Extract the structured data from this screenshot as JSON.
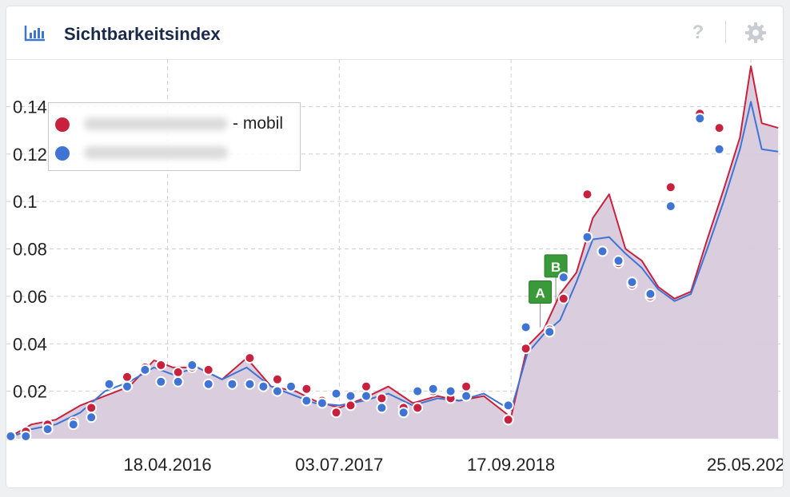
{
  "widget": {
    "title": "Sichtbarkeitsindex",
    "help_label": "?"
  },
  "colors": {
    "mobile": "#c8213e",
    "desktop": "#3f74d4",
    "area_fill": "#d8cadb",
    "grid": "#cfcfcf"
  },
  "chart_data": {
    "type": "line",
    "title": "Sichtbarkeitsindex",
    "ylim": [
      0,
      0.16
    ],
    "yticks": [
      0.02,
      0.04,
      0.06,
      0.08,
      0.1,
      0.12,
      0.14
    ],
    "ytick_labels": [
      "0.02",
      "0.04",
      "0.06",
      "0.08",
      "0.1",
      "0.12",
      "0.14"
    ],
    "xlim": [
      "2015-03-01",
      "2020-08-15"
    ],
    "xticks": [
      "2016-04-18",
      "2017-07-03",
      "2018-09-17",
      "2020-05-25"
    ],
    "xtick_labels": [
      "18.04.2016",
      "03.07.2017",
      "17.09.2018",
      "25.05.2020"
    ],
    "grid": true,
    "legend_position": "top-left",
    "legend": [
      {
        "series": "mobile",
        "label_suffix": "- mobil"
      },
      {
        "series": "desktop",
        "label_suffix": ""
      }
    ],
    "series": [
      {
        "key": "mobile",
        "x": [
          "2015-03-02",
          "2015-05-04",
          "2015-07-06",
          "2015-09-07",
          "2015-11-09",
          "2016-01-11",
          "2016-03-14",
          "2016-05-02",
          "2016-07-04",
          "2016-09-05",
          "2016-11-07",
          "2017-01-09",
          "2017-03-13",
          "2017-05-01",
          "2017-07-03",
          "2017-09-04",
          "2017-11-06",
          "2018-01-08",
          "2018-03-12",
          "2018-05-07",
          "2018-07-09",
          "2018-09-17",
          "2018-10-29",
          "2018-12-10",
          "2019-01-21",
          "2019-03-04",
          "2019-04-15",
          "2019-05-27",
          "2019-07-08",
          "2019-08-19",
          "2019-09-30",
          "2019-11-11",
          "2019-12-23",
          "2020-02-03",
          "2020-03-16",
          "2020-04-27",
          "2020-05-25",
          "2020-06-22",
          "2020-08-03"
        ],
        "values": [
          0.0,
          0.006,
          0.008,
          0.014,
          0.018,
          0.022,
          0.033,
          0.03,
          0.03,
          0.025,
          0.034,
          0.022,
          0.02,
          0.016,
          0.013,
          0.017,
          0.022,
          0.015,
          0.018,
          0.016,
          0.018,
          0.009,
          0.039,
          0.046,
          0.061,
          0.07,
          0.093,
          0.103,
          0.08,
          0.075,
          0.064,
          0.059,
          0.062,
          0.084,
          0.105,
          0.127,
          0.157,
          0.133,
          0.131
        ]
      },
      {
        "key": "desktop",
        "x": [
          "2015-03-02",
          "2015-05-04",
          "2015-07-06",
          "2015-09-07",
          "2015-11-09",
          "2016-01-11",
          "2016-03-14",
          "2016-05-02",
          "2016-07-04",
          "2016-09-05",
          "2016-11-07",
          "2017-01-09",
          "2017-03-13",
          "2017-05-01",
          "2017-07-03",
          "2017-09-04",
          "2017-11-06",
          "2018-01-08",
          "2018-03-12",
          "2018-05-07",
          "2018-07-09",
          "2018-09-17",
          "2018-10-29",
          "2018-12-10",
          "2019-01-21",
          "2019-03-04",
          "2019-04-15",
          "2019-05-27",
          "2019-07-08",
          "2019-08-19",
          "2019-09-30",
          "2019-11-11",
          "2019-12-23",
          "2020-02-03",
          "2020-03-16",
          "2020-04-27",
          "2020-05-25",
          "2020-06-22",
          "2020-08-03"
        ],
        "values": [
          0.0,
          0.004,
          0.006,
          0.011,
          0.02,
          0.024,
          0.03,
          0.027,
          0.03,
          0.025,
          0.03,
          0.022,
          0.018,
          0.015,
          0.014,
          0.016,
          0.019,
          0.014,
          0.017,
          0.016,
          0.019,
          0.012,
          0.036,
          0.044,
          0.05,
          0.066,
          0.084,
          0.085,
          0.078,
          0.072,
          0.063,
          0.058,
          0.061,
          0.08,
          0.1,
          0.122,
          0.142,
          0.122,
          0.121
        ]
      }
    ],
    "markers_mobile": [
      {
        "x": "2015-03-12",
        "y": 0.001
      },
      {
        "x": "2015-04-20",
        "y": 0.003
      },
      {
        "x": "2015-06-15",
        "y": 0.006
      },
      {
        "x": "2015-08-20",
        "y": 0.007
      },
      {
        "x": "2015-10-05",
        "y": 0.013
      },
      {
        "x": "2015-11-20",
        "y": 0.023
      },
      {
        "x": "2016-01-05",
        "y": 0.026
      },
      {
        "x": "2016-02-20",
        "y": 0.03
      },
      {
        "x": "2016-04-01",
        "y": 0.031
      },
      {
        "x": "2016-05-15",
        "y": 0.028
      },
      {
        "x": "2016-06-20",
        "y": 0.03
      },
      {
        "x": "2016-08-01",
        "y": 0.029
      },
      {
        "x": "2016-10-01",
        "y": 0.023
      },
      {
        "x": "2016-11-15",
        "y": 0.034
      },
      {
        "x": "2016-12-20",
        "y": 0.022
      },
      {
        "x": "2017-01-25",
        "y": 0.025
      },
      {
        "x": "2017-03-01",
        "y": 0.022
      },
      {
        "x": "2017-04-10",
        "y": 0.021
      },
      {
        "x": "2017-05-20",
        "y": 0.016
      },
      {
        "x": "2017-06-25",
        "y": 0.011
      },
      {
        "x": "2017-08-01",
        "y": 0.014
      },
      {
        "x": "2017-09-10",
        "y": 0.022
      },
      {
        "x": "2017-10-20",
        "y": 0.017
      },
      {
        "x": "2017-12-15",
        "y": 0.013
      },
      {
        "x": "2018-01-20",
        "y": 0.013
      },
      {
        "x": "2018-03-01",
        "y": 0.02
      },
      {
        "x": "2018-04-15",
        "y": 0.017
      },
      {
        "x": "2018-05-25",
        "y": 0.022
      },
      {
        "x": "2018-09-10",
        "y": 0.008
      },
      {
        "x": "2018-10-25",
        "y": 0.038
      },
      {
        "x": "2018-12-25",
        "y": 0.046
      },
      {
        "x": "2019-01-30",
        "y": 0.059
      },
      {
        "x": "2019-04-01",
        "y": 0.103
      },
      {
        "x": "2019-05-10",
        "y": 0.079
      },
      {
        "x": "2019-06-20",
        "y": 0.074
      },
      {
        "x": "2019-07-25",
        "y": 0.065
      },
      {
        "x": "2019-09-10",
        "y": 0.06
      },
      {
        "x": "2019-11-01",
        "y": 0.106
      },
      {
        "x": "2020-01-15",
        "y": 0.137
      },
      {
        "x": "2020-03-05",
        "y": 0.131
      }
    ],
    "markers_desktop": [
      {
        "x": "2015-03-12",
        "y": 0.001
      },
      {
        "x": "2015-04-20",
        "y": 0.001
      },
      {
        "x": "2015-06-15",
        "y": 0.004
      },
      {
        "x": "2015-08-20",
        "y": 0.006
      },
      {
        "x": "2015-10-05",
        "y": 0.009
      },
      {
        "x": "2015-11-20",
        "y": 0.023
      },
      {
        "x": "2016-01-05",
        "y": 0.022
      },
      {
        "x": "2016-02-20",
        "y": 0.029
      },
      {
        "x": "2016-04-01",
        "y": 0.024
      },
      {
        "x": "2016-05-15",
        "y": 0.024
      },
      {
        "x": "2016-06-20",
        "y": 0.031
      },
      {
        "x": "2016-08-01",
        "y": 0.023
      },
      {
        "x": "2016-10-01",
        "y": 0.023
      },
      {
        "x": "2016-11-15",
        "y": 0.023
      },
      {
        "x": "2016-12-20",
        "y": 0.022
      },
      {
        "x": "2017-01-25",
        "y": 0.02
      },
      {
        "x": "2017-03-01",
        "y": 0.022
      },
      {
        "x": "2017-04-10",
        "y": 0.016
      },
      {
        "x": "2017-05-20",
        "y": 0.015
      },
      {
        "x": "2017-06-25",
        "y": 0.019
      },
      {
        "x": "2017-08-01",
        "y": 0.018
      },
      {
        "x": "2017-09-10",
        "y": 0.018
      },
      {
        "x": "2017-10-20",
        "y": 0.013
      },
      {
        "x": "2017-12-15",
        "y": 0.011
      },
      {
        "x": "2018-01-20",
        "y": 0.02
      },
      {
        "x": "2018-03-01",
        "y": 0.021
      },
      {
        "x": "2018-04-15",
        "y": 0.02
      },
      {
        "x": "2018-05-25",
        "y": 0.018
      },
      {
        "x": "2018-09-10",
        "y": 0.014
      },
      {
        "x": "2018-10-25",
        "y": 0.047
      },
      {
        "x": "2018-12-25",
        "y": 0.045
      },
      {
        "x": "2019-01-30",
        "y": 0.068
      },
      {
        "x": "2019-04-01",
        "y": 0.085
      },
      {
        "x": "2019-05-10",
        "y": 0.079
      },
      {
        "x": "2019-06-20",
        "y": 0.075
      },
      {
        "x": "2019-07-25",
        "y": 0.066
      },
      {
        "x": "2019-09-10",
        "y": 0.061
      },
      {
        "x": "2019-11-01",
        "y": 0.098
      },
      {
        "x": "2020-01-15",
        "y": 0.135
      },
      {
        "x": "2020-03-05",
        "y": 0.122
      }
    ],
    "annotations": [
      {
        "label": "A",
        "x": "2018-12-01",
        "y": 0.047
      },
      {
        "label": "B",
        "x": "2019-01-10",
        "y": 0.058
      }
    ]
  }
}
